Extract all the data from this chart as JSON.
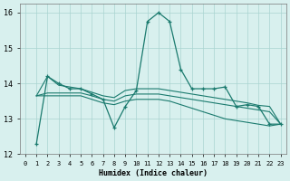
{
  "xlabel": "Humidex (Indice chaleur)",
  "x_main": [
    1,
    2,
    3,
    4,
    5,
    6,
    7,
    8,
    9,
    10,
    11,
    12,
    13,
    14,
    15,
    16,
    17,
    18,
    19,
    20,
    21,
    22,
    23
  ],
  "y_main": [
    12.3,
    14.2,
    14.0,
    13.85,
    13.85,
    13.7,
    13.55,
    12.75,
    13.35,
    13.8,
    15.75,
    16.0,
    15.75,
    14.4,
    13.85,
    13.85,
    13.85,
    13.9,
    13.35,
    13.4,
    13.35,
    12.85,
    12.85
  ],
  "x_band": [
    1,
    2,
    3,
    4,
    5,
    6,
    7,
    8,
    9,
    10,
    11,
    12,
    13,
    14,
    15,
    16,
    17,
    18,
    19,
    20,
    21,
    22,
    23
  ],
  "y_top": [
    13.65,
    14.2,
    13.95,
    13.9,
    13.85,
    13.75,
    13.65,
    13.6,
    13.8,
    13.85,
    13.85,
    13.85,
    13.8,
    13.75,
    13.7,
    13.65,
    13.6,
    13.55,
    13.5,
    13.45,
    13.38,
    13.35,
    12.85
  ],
  "y_mid": [
    13.65,
    13.73,
    13.73,
    13.73,
    13.73,
    13.65,
    13.55,
    13.5,
    13.65,
    13.7,
    13.7,
    13.7,
    13.65,
    13.6,
    13.55,
    13.5,
    13.45,
    13.4,
    13.35,
    13.3,
    13.25,
    13.2,
    12.85
  ],
  "y_bot": [
    13.65,
    13.65,
    13.65,
    13.65,
    13.65,
    13.55,
    13.45,
    13.4,
    13.5,
    13.55,
    13.55,
    13.55,
    13.5,
    13.4,
    13.3,
    13.2,
    13.1,
    13.0,
    12.95,
    12.9,
    12.85,
    12.8,
    12.85
  ],
  "color": "#1a7a6e",
  "bg_color": "#d8f0ee",
  "grid_color": "#aad4d0",
  "ylim": [
    12.0,
    16.25
  ],
  "xlim": [
    -0.5,
    23.5
  ],
  "yticks": [
    12,
    13,
    14,
    15,
    16
  ],
  "xticks": [
    0,
    1,
    2,
    3,
    4,
    5,
    6,
    7,
    8,
    9,
    10,
    11,
    12,
    13,
    14,
    15,
    16,
    17,
    18,
    19,
    20,
    21,
    22,
    23
  ]
}
